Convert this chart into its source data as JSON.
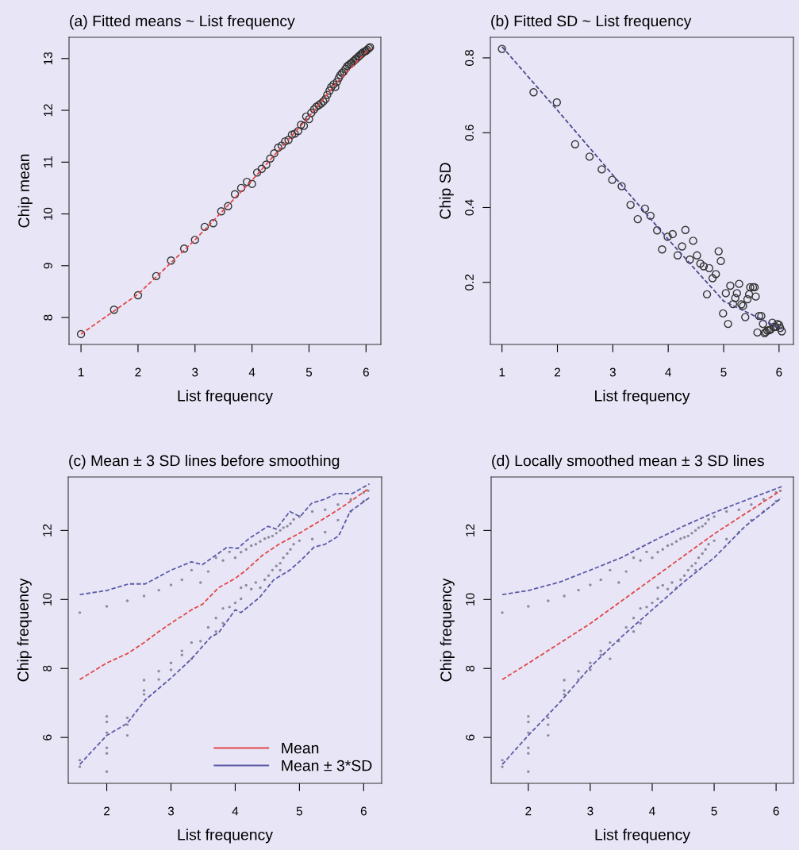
{
  "chart_data": [
    {
      "type": "scatter",
      "title": "(a) Fitted means ~ List frequency",
      "xlabel": "List frequency",
      "ylabel": "Chip mean",
      "xlim": [
        0.79,
        6.26
      ],
      "ylim": [
        7.48,
        13.41
      ],
      "xticks": [
        1,
        2,
        3,
        4,
        5,
        6
      ],
      "yticks": [
        8,
        9,
        10,
        11,
        12,
        13
      ],
      "grid": false,
      "legend": false,
      "series": [
        {
          "color": "#333333",
          "marker": "circle",
          "x": [
            1,
            1.58,
            2,
            2.32,
            2.58,
            2.81,
            3,
            3.17,
            3.32,
            3.46,
            3.58,
            3.7,
            3.81,
            3.91,
            4,
            4.09,
            4.17,
            4.25,
            4.32,
            4.39,
            4.46,
            4.52,
            4.58,
            4.64,
            4.7,
            4.75,
            4.81,
            4.86,
            4.91,
            4.95,
            5,
            5.04,
            5.09,
            5.13,
            5.17,
            5.21,
            5.25,
            5.29,
            5.32,
            5.36,
            5.39,
            5.43,
            5.46,
            5.49,
            5.52,
            5.55,
            5.58,
            5.61,
            5.64,
            5.67,
            5.7,
            5.73,
            5.75,
            5.78,
            5.81,
            5.83,
            5.86,
            5.88,
            5.91,
            5.93,
            5.95,
            5.98,
            6,
            6.02,
            6.05,
            6.07
          ],
          "values": [
            7.68,
            8.15,
            8.43,
            8.8,
            9.1,
            9.33,
            9.5,
            9.75,
            9.82,
            10.05,
            10.15,
            10.38,
            10.5,
            10.62,
            10.58,
            10.8,
            10.87,
            10.95,
            11.07,
            11.17,
            11.28,
            11.32,
            11.4,
            11.43,
            11.53,
            11.55,
            11.6,
            11.72,
            11.7,
            11.88,
            11.83,
            11.95,
            12.02,
            12.07,
            12.1,
            12.13,
            12.17,
            12.22,
            12.3,
            12.38,
            12.45,
            12.5,
            12.45,
            12.55,
            12.62,
            12.68,
            12.72,
            12.75,
            12.8,
            12.85,
            12.88,
            12.9,
            12.92,
            12.95,
            12.98,
            13.0,
            13.03,
            13.05,
            13.08,
            13.1,
            13.12,
            13.14,
            13.15,
            13.17,
            13.2,
            13.22
          ]
        },
        {
          "type": "line",
          "color": "#e04848",
          "line_style": "dashed",
          "marker": "none",
          "x": [
            1,
            2,
            3,
            4,
            5,
            5.5,
            6.07
          ],
          "values": [
            7.68,
            8.45,
            9.5,
            10.65,
            11.88,
            12.55,
            13.2
          ]
        }
      ]
    },
    {
      "type": "scatter",
      "title": "(b) Fitted SD ~ List frequency",
      "xlabel": "List frequency",
      "ylabel": "Chip SD",
      "xlim": [
        0.79,
        6.26
      ],
      "ylim": [
        0.034,
        0.855
      ],
      "xticks": [
        1,
        2,
        3,
        4,
        5,
        6
      ],
      "yticks": [
        0.2,
        0.4,
        0.6,
        0.8
      ],
      "grid": false,
      "legend": false,
      "series": [
        {
          "color": "#333333",
          "marker": "circle",
          "x": [
            1,
            1.57,
            1.99,
            2.32,
            2.58,
            2.8,
            2.99,
            3.16,
            3.32,
            3.45,
            3.58,
            3.68,
            3.8,
            3.89,
            3.99,
            4.08,
            4.17,
            4.25,
            4.31,
            4.39,
            4.45,
            4.52,
            4.58,
            4.64,
            4.7,
            4.74,
            4.8,
            4.86,
            4.91,
            4.95,
            4.99,
            5.04,
            5.08,
            5.12,
            5.17,
            5.21,
            5.24,
            5.28,
            5.32,
            5.35,
            5.39,
            5.43,
            5.46,
            5.48,
            5.53,
            5.56,
            5.58,
            5.61,
            5.64,
            5.68,
            5.71,
            5.74,
            5.76,
            5.79,
            5.82,
            5.85,
            5.88,
            5.91,
            5.94,
            5.97,
            6.0,
            6.02,
            6.05
          ],
          "values": [
            0.824,
            0.708,
            0.681,
            0.569,
            0.536,
            0.502,
            0.474,
            0.457,
            0.407,
            0.369,
            0.397,
            0.378,
            0.339,
            0.288,
            0.322,
            0.329,
            0.272,
            0.296,
            0.34,
            0.261,
            0.311,
            0.272,
            0.25,
            0.243,
            0.168,
            0.238,
            0.211,
            0.222,
            0.283,
            0.257,
            0.117,
            0.171,
            0.089,
            0.191,
            0.142,
            0.158,
            0.171,
            0.196,
            0.141,
            0.137,
            0.107,
            0.155,
            0.168,
            0.187,
            0.187,
            0.187,
            0.162,
            0.066,
            0.11,
            0.11,
            0.089,
            0.064,
            0.067,
            0.071,
            0.072,
            0.074,
            0.092,
            0.081,
            0.081,
            0.089,
            0.086,
            0.078,
            0.069
          ]
        },
        {
          "type": "line",
          "color": "#4a4a90",
          "line_style": "dashed",
          "marker": "none",
          "x": [
            1,
            2,
            3,
            4,
            5,
            6.05
          ],
          "values": [
            0.83,
            0.66,
            0.487,
            0.315,
            0.15,
            0.075
          ]
        }
      ]
    },
    {
      "type": "scatter",
      "title": "(c) Mean ± 3 SD lines before smoothing",
      "xlabel": "List frequency",
      "ylabel": "Chip frequency",
      "xlim": [
        1.4,
        6.28
      ],
      "ylim": [
        4.67,
        13.55
      ],
      "xticks": [
        2,
        3,
        4,
        5,
        6
      ],
      "yticks": [
        6,
        8,
        10,
        12
      ],
      "grid": false,
      "legend": "bottom right",
      "series": [
        {
          "color": "#8c8a9c",
          "marker": "circle",
          "x": [
            1.58,
            1.58,
            1.58,
            2,
            2,
            2,
            2,
            2,
            2,
            2,
            2.32,
            2.32,
            2.32,
            2.32,
            2.58,
            2.58,
            2.58,
            2.58,
            2.81,
            2.81,
            2.81,
            3,
            3,
            3,
            3.17,
            3.17,
            3.17,
            3.32,
            3.32,
            3.32,
            3.46,
            3.46,
            3.58,
            3.58,
            3.7,
            3.7,
            3.7,
            3.81,
            3.81,
            3.81,
            3.91,
            3.91,
            4,
            4,
            4.09,
            4.09,
            4.09,
            4.17,
            4.17,
            4.25,
            4.25,
            4.32,
            4.32,
            4.39,
            4.39,
            4.46,
            4.46,
            4.52,
            4.52,
            4.58,
            4.58,
            4.64,
            4.64,
            4.7,
            4.7,
            4.7,
            4.75,
            4.75,
            4.81,
            4.81,
            4.86,
            4.86,
            4.91,
            4.91,
            5.0,
            5.0,
            5.2,
            5.2,
            5.4,
            5.4,
            5.6,
            5.6,
            5.8,
            5.8,
            6.0,
            6.0,
            6.07
          ],
          "values": [
            9.62,
            5.34,
            5.15,
            9.8,
            6.61,
            6.45,
            6.14,
            5.7,
            5.54,
            5.01,
            9.96,
            6.57,
            6.37,
            6.06,
            10.1,
            7.66,
            7.36,
            7.25,
            10.27,
            7.92,
            7.68,
            10.42,
            8.16,
            7.96,
            10.57,
            8.51,
            8.39,
            10.85,
            8.75,
            8.28,
            10.49,
            8.79,
            10.81,
            9.19,
            11.21,
            9.46,
            9.07,
            11.13,
            9.74,
            9.31,
            11.38,
            9.78,
            11.21,
            9.9,
            11.37,
            10.34,
            10.02,
            11.45,
            10.41,
            11.56,
            10.3,
            11.6,
            10.49,
            11.68,
            10.34,
            11.76,
            10.57,
            11.8,
            10.69,
            11.84,
            10.85,
            11.92,
            10.97,
            12.0,
            11.05,
            10.85,
            12.08,
            11.21,
            12.12,
            11.33,
            12.2,
            11.45,
            12.32,
            11.6,
            12.4,
            11.7,
            12.55,
            11.75,
            12.6,
            11.95,
            12.75,
            12.3,
            12.9,
            12.55,
            13.1,
            12.85,
            13.15
          ]
        },
        {
          "type": "line",
          "name": "Mean",
          "color": "#e04848",
          "line_style": "dashed",
          "marker": "none",
          "x": [
            1.58,
            2,
            2.32,
            2.58,
            2.81,
            3,
            3.32,
            3.49,
            3.74,
            4,
            4.17,
            4.43,
            4.68,
            5,
            5.36,
            5.66,
            6.06
          ],
          "values": [
            7.68,
            8.16,
            8.43,
            8.75,
            9.07,
            9.31,
            9.7,
            9.86,
            10.34,
            10.61,
            10.85,
            11.29,
            11.6,
            11.92,
            12.32,
            12.67,
            13.19
          ]
        },
        {
          "type": "line",
          "name": "Mean ± 3*SD",
          "color": "#5a5aa8",
          "line_style": "dashed",
          "marker": "none",
          "x": [
            1.58,
            2,
            2.34,
            2.6,
            3,
            3.32,
            3.49,
            3.87,
            4.04,
            4.21,
            4.51,
            4.64,
            4.85,
            5.01,
            5.19,
            5.4,
            5.57,
            5.82,
            6.09
          ],
          "values": [
            10.14,
            10.26,
            10.45,
            10.45,
            10.85,
            11.09,
            11.01,
            11.51,
            11.48,
            11.76,
            12.12,
            12.04,
            12.55,
            12.4,
            12.79,
            12.91,
            13.07,
            13.07,
            13.35
          ]
        },
        {
          "type": "line",
          "color": "#5a5aa8",
          "line_style": "dashed",
          "marker": "none",
          "x": [
            1.58,
            2,
            2.32,
            2.6,
            3,
            3.32,
            3.62,
            3.74,
            4,
            4.09,
            4.38,
            4.6,
            4.85,
            5.02,
            5.23,
            5.4,
            5.61,
            5.79,
            6.09
          ],
          "values": [
            5.22,
            6.06,
            6.41,
            7.09,
            7.72,
            8.28,
            8.91,
            9.03,
            9.7,
            9.62,
            10.06,
            10.57,
            10.85,
            11.13,
            11.52,
            11.6,
            11.84,
            12.55,
            12.95
          ]
        }
      ]
    },
    {
      "type": "scatter",
      "title": "(d) Locally smoothed mean ± 3 SD lines",
      "xlabel": "List frequency",
      "ylabel": "Chip frequency",
      "xlim": [
        1.4,
        6.28
      ],
      "ylim": [
        4.67,
        13.55
      ],
      "xticks": [
        2,
        3,
        4,
        5,
        6
      ],
      "yticks": [
        6,
        8,
        10,
        12
      ],
      "grid": false,
      "legend": false,
      "series": [
        {
          "color": "#8c8a9c",
          "marker": "circle",
          "x": [
            1.58,
            1.58,
            1.58,
            2,
            2,
            2,
            2,
            2,
            2,
            2,
            2.32,
            2.32,
            2.32,
            2.32,
            2.58,
            2.58,
            2.58,
            2.58,
            2.81,
            2.81,
            2.81,
            3,
            3,
            3,
            3.17,
            3.17,
            3.17,
            3.32,
            3.32,
            3.32,
            3.46,
            3.46,
            3.58,
            3.58,
            3.7,
            3.7,
            3.7,
            3.81,
            3.81,
            3.81,
            3.91,
            3.91,
            4,
            4,
            4.09,
            4.09,
            4.09,
            4.17,
            4.17,
            4.25,
            4.25,
            4.32,
            4.32,
            4.39,
            4.39,
            4.46,
            4.46,
            4.52,
            4.52,
            4.58,
            4.58,
            4.64,
            4.64,
            4.7,
            4.7,
            4.7,
            4.75,
            4.75,
            4.81,
            4.81,
            4.86,
            4.86,
            4.91,
            4.91,
            5.0,
            5.0,
            5.2,
            5.2,
            5.4,
            5.4,
            5.6,
            5.6,
            5.8,
            5.8,
            6.0,
            6.0,
            6.07
          ],
          "values": [
            9.62,
            5.34,
            5.15,
            9.8,
            6.61,
            6.45,
            6.14,
            5.7,
            5.54,
            5.01,
            9.96,
            6.57,
            6.37,
            6.06,
            10.1,
            7.66,
            7.36,
            7.25,
            10.27,
            7.92,
            7.68,
            10.42,
            8.16,
            7.96,
            10.57,
            8.51,
            8.39,
            10.85,
            8.75,
            8.28,
            10.49,
            8.79,
            10.81,
            9.19,
            11.21,
            9.46,
            9.07,
            11.13,
            9.74,
            9.31,
            11.38,
            9.78,
            11.21,
            9.9,
            11.37,
            10.34,
            10.02,
            11.45,
            10.41,
            11.56,
            10.3,
            11.6,
            10.49,
            11.68,
            10.34,
            11.76,
            10.57,
            11.8,
            10.69,
            11.84,
            10.85,
            11.92,
            10.97,
            12.0,
            11.05,
            10.85,
            12.08,
            11.21,
            12.12,
            11.33,
            12.2,
            11.45,
            12.32,
            11.6,
            12.4,
            11.7,
            12.55,
            11.75,
            12.6,
            11.95,
            12.75,
            12.3,
            12.9,
            12.55,
            13.1,
            12.85,
            13.15
          ]
        },
        {
          "type": "line",
          "color": "#e04848",
          "line_style": "dashed",
          "marker": "none",
          "x": [
            1.58,
            2,
            3,
            4,
            5,
            6.07
          ],
          "values": [
            7.68,
            8.15,
            9.3,
            10.6,
            11.9,
            13.15
          ]
        },
        {
          "type": "line",
          "color": "#5a5aa8",
          "line_style": "dashed",
          "marker": "none",
          "x": [
            1.58,
            2,
            2.5,
            3,
            3.5,
            4,
            4.5,
            5,
            5.5,
            6.09
          ],
          "values": [
            10.14,
            10.26,
            10.5,
            10.85,
            11.21,
            11.68,
            12.12,
            12.52,
            12.87,
            13.27
          ]
        },
        {
          "type": "line",
          "color": "#5a5aa8",
          "line_style": "dashed",
          "marker": "none",
          "x": [
            1.58,
            2,
            2.5,
            3,
            3.5,
            4,
            4.5,
            5,
            5.5,
            6.09
          ],
          "values": [
            5.22,
            6.06,
            7.0,
            8.04,
            8.91,
            9.7,
            10.49,
            11.21,
            12.12,
            12.95
          ]
        }
      ]
    }
  ]
}
